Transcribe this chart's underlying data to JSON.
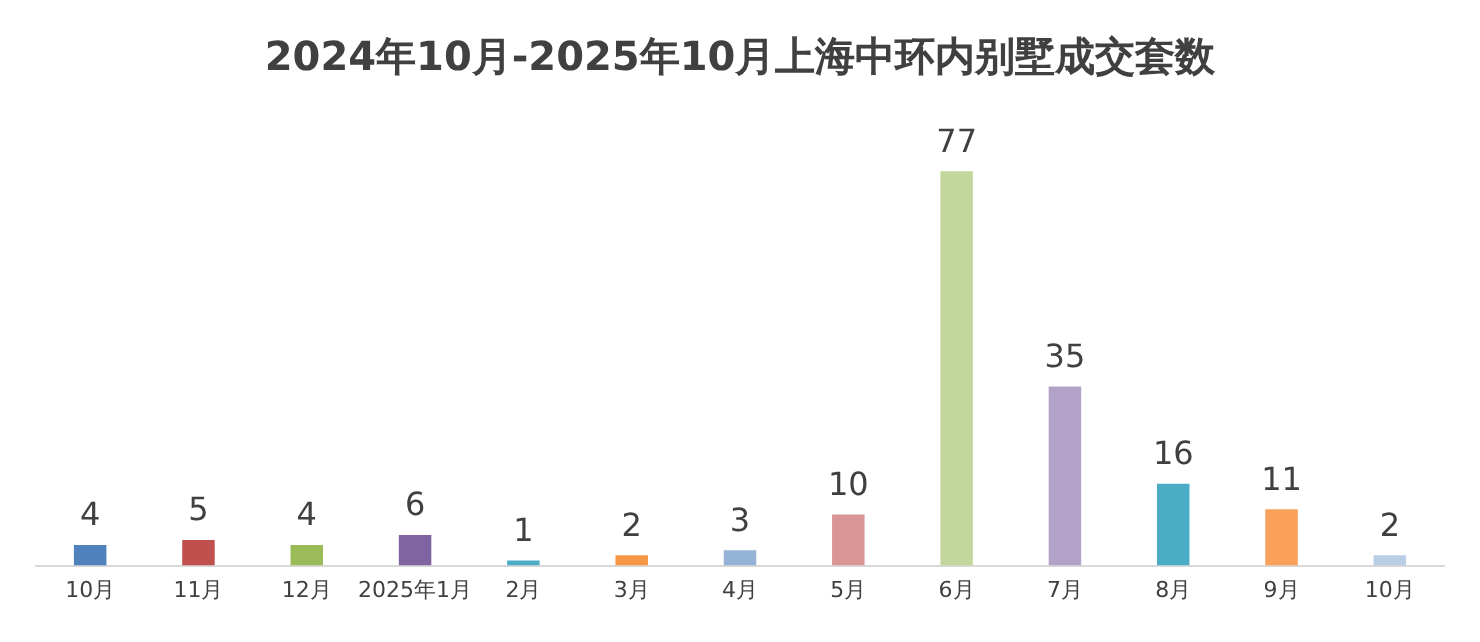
{
  "chart_data": {
    "type": "bar",
    "title": "2024年10月-2025年10月上海中环内别墅成交套数",
    "categories": [
      "10月",
      "11月",
      "12月",
      "2025年1月",
      "2月",
      "3月",
      "4月",
      "5月",
      "6月",
      "7月",
      "8月",
      "9月",
      "10月"
    ],
    "values": [
      4,
      5,
      4,
      6,
      1,
      2,
      3,
      10,
      77,
      35,
      16,
      11,
      2
    ],
    "colors": [
      "#4f81bd",
      "#c0504d",
      "#9bbb59",
      "#8064a2",
      "#4bacc6",
      "#f79646",
      "#95b3d7",
      "#d99694",
      "#c3d69b",
      "#b3a2c7",
      "#4bacc6",
      "#f9a05a",
      "#b9cde5"
    ],
    "data_labels": true,
    "grid": false,
    "legend": false
  }
}
